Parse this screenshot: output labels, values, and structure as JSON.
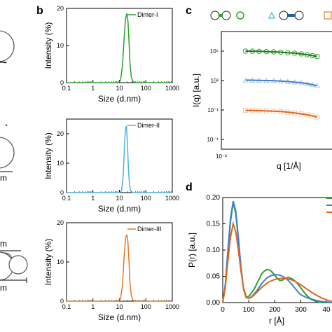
{
  "panel_labels": [
    "b",
    "c",
    "d"
  ],
  "colors": {
    "dimer1": "#2ca02c",
    "dimer2": "#4ab4e0",
    "dimer3": "#e07a20",
    "c_blue": "#3f7fd0",
    "c_orange": "#e0661f"
  },
  "left_scale_labels": [
    "m",
    "m",
    "m"
  ],
  "chart_data": [
    {
      "type": "line",
      "panel": "b-top",
      "xlabel": "Size (d.nm)",
      "ylabel": "Intensity (%)",
      "xscale": "log",
      "xlim": [
        0.1,
        1000
      ],
      "ylim": [
        0,
        20
      ],
      "xticks": [
        "0.1",
        "1",
        "10",
        "100",
        "1000"
      ],
      "yticks": [
        "0",
        "10",
        "20"
      ],
      "series": [
        {
          "name": "Dimer-I",
          "color": "#2ca02c",
          "x": [
            0.1,
            9,
            11,
            13,
            15,
            17,
            19,
            21,
            23,
            25,
            28,
            33,
            40,
            1000
          ],
          "y": [
            0,
            0,
            0.6,
            4.5,
            11.5,
            17.2,
            18.6,
            16.5,
            11,
            5.5,
            1.5,
            0.2,
            0,
            0
          ]
        }
      ]
    },
    {
      "type": "line",
      "panel": "b-mid",
      "xlabel": "Size (d.nm)",
      "ylabel": "Intensity (%)",
      "xscale": "log",
      "xlim": [
        0.1,
        1000
      ],
      "ylim": [
        0,
        25
      ],
      "xticks": [
        "0.1",
        "1",
        "10",
        "100",
        "1000"
      ],
      "yticks": [
        "0",
        "10",
        "20"
      ],
      "series": [
        {
          "name": "Dimer-II",
          "color": "#4ab4e0",
          "x": [
            0.1,
            10,
            12,
            14,
            15.5,
            17,
            18.5,
            20,
            22,
            24,
            27,
            32,
            1000
          ],
          "y": [
            0,
            0,
            0.6,
            6,
            16,
            22,
            22.5,
            17,
            8,
            2.5,
            0.5,
            0,
            0
          ]
        }
      ]
    },
    {
      "type": "line",
      "panel": "b-bot",
      "xlabel": "Size (d.nm)",
      "ylabel": "Intensity (%)",
      "xscale": "log",
      "xlim": [
        0.1,
        1000
      ],
      "ylim": [
        0,
        20
      ],
      "xticks": [
        "0.1",
        "1",
        "10",
        "100",
        "1000"
      ],
      "yticks": [
        "0",
        "10",
        "20"
      ],
      "series": [
        {
          "name": "Dimer-III",
          "color": "#e07a20",
          "x": [
            0.1,
            9,
            11,
            13,
            15,
            17,
            19,
            21,
            23,
            25,
            28,
            33,
            40,
            1000
          ],
          "y": [
            0,
            0,
            0.6,
            4,
            11,
            16,
            17,
            15,
            10,
            5,
            1.5,
            0.2,
            0,
            0
          ]
        }
      ]
    },
    {
      "type": "scatter",
      "panel": "c",
      "xlabel": "q [1/Å]",
      "ylabel": "I(q) [a.u.]",
      "xscale": "log",
      "yscale": "log",
      "xlim": [
        0.01,
        0.3
      ],
      "ylim": [
        1e-05,
        10000000
      ],
      "xticks": [
        "10⁻²"
      ],
      "yticks": [
        "10⁻⁴",
        "10⁻¹",
        "10²",
        "10⁵"
      ],
      "series": [
        {
          "marker": "circle",
          "color": "#2ca02c",
          "fit": "#1e7a1e",
          "x": [
            0.021,
            0.026,
            0.032,
            0.04,
            0.05,
            0.062,
            0.077,
            0.095,
            0.117,
            0.14,
            0.165,
            0.19
          ],
          "y": [
            100000,
            98000,
            95000,
            90000,
            85000,
            78000,
            70000,
            62000,
            52000,
            43000,
            35000,
            28000
          ]
        },
        {
          "marker": "triangle",
          "color": "#a8cbe8",
          "fit": "#3f7fd0",
          "x": [
            0.021,
            0.026,
            0.032,
            0.04,
            0.05,
            0.062,
            0.077,
            0.095,
            0.117,
            0.14,
            0.165,
            0.19
          ],
          "y": [
            110,
            108,
            105,
            100,
            95,
            88,
            80,
            70,
            60,
            48,
            38,
            30
          ]
        },
        {
          "marker": "square",
          "color": "#f4c8a8",
          "fit": "#e0661f",
          "x": [
            0.021,
            0.026,
            0.032,
            0.04,
            0.05,
            0.062,
            0.077,
            0.095,
            0.117,
            0.14,
            0.165,
            0.19
          ],
          "y": [
            0.09,
            0.088,
            0.085,
            0.08,
            0.075,
            0.068,
            0.06,
            0.05,
            0.04,
            0.032,
            0.025,
            0.019
          ]
        }
      ]
    },
    {
      "type": "line",
      "panel": "d",
      "xlabel": "r [Å]",
      "ylabel": "P(r) [a.u.]",
      "xlim": [
        0,
        420
      ],
      "ylim": [
        0,
        0.2
      ],
      "xticks": [
        "0",
        "100",
        "200",
        "300",
        "40"
      ],
      "yticks": [
        "0.00",
        "0.05",
        "0.10",
        "0.15",
        "0.20"
      ],
      "series": [
        {
          "color": "#2ca02c",
          "x": [
            0,
            10,
            20,
            30,
            40,
            50,
            60,
            70,
            80,
            90,
            100,
            110,
            120,
            130,
            140,
            150,
            160,
            170,
            180,
            190,
            200,
            210,
            220,
            230,
            240,
            250,
            260,
            270,
            280,
            290,
            300,
            320,
            340,
            360,
            380,
            400,
            420
          ],
          "y": [
            0,
            0.03,
            0.09,
            0.155,
            0.19,
            0.17,
            0.12,
            0.065,
            0.025,
            0.01,
            0.012,
            0.018,
            0.025,
            0.035,
            0.045,
            0.055,
            0.06,
            0.063,
            0.062,
            0.058,
            0.052,
            0.046,
            0.042,
            0.043,
            0.046,
            0.048,
            0.047,
            0.044,
            0.04,
            0.035,
            0.028,
            0.015,
            0.006,
            0.002,
            0.0,
            0.0,
            0.0
          ]
        },
        {
          "color": "#3f7fd0",
          "x": [
            0,
            10,
            20,
            30,
            40,
            50,
            60,
            70,
            80,
            90,
            100,
            110,
            120,
            130,
            140,
            150,
            160,
            170,
            180,
            190,
            200,
            210,
            220,
            230,
            240,
            250,
            260,
            270,
            280,
            290,
            300,
            320,
            340,
            360,
            380,
            400,
            420
          ],
          "y": [
            0,
            0.035,
            0.1,
            0.16,
            0.193,
            0.175,
            0.125,
            0.068,
            0.027,
            0.01,
            0.008,
            0.011,
            0.016,
            0.022,
            0.029,
            0.036,
            0.042,
            0.047,
            0.05,
            0.052,
            0.053,
            0.053,
            0.052,
            0.05,
            0.047,
            0.043,
            0.038,
            0.032,
            0.026,
            0.02,
            0.015,
            0.01,
            0.007,
            0.004,
            0.002,
            0.001,
            0.0
          ]
        },
        {
          "color": "#e0661f",
          "x": [
            0,
            10,
            20,
            30,
            40,
            50,
            60,
            70,
            80,
            90,
            100,
            110,
            120,
            130,
            140,
            150,
            160,
            170,
            180,
            190,
            200,
            210,
            220,
            230,
            240,
            250,
            260,
            270,
            280,
            290,
            300,
            320,
            340,
            360,
            380,
            400,
            420
          ],
          "y": [
            0,
            0.03,
            0.08,
            0.125,
            0.15,
            0.135,
            0.1,
            0.06,
            0.028,
            0.012,
            0.008,
            0.01,
            0.014,
            0.019,
            0.024,
            0.029,
            0.033,
            0.037,
            0.04,
            0.042,
            0.044,
            0.045,
            0.046,
            0.046,
            0.046,
            0.045,
            0.044,
            0.042,
            0.04,
            0.037,
            0.034,
            0.027,
            0.02,
            0.014,
            0.009,
            0.005,
            0.002
          ]
        }
      ]
    }
  ]
}
